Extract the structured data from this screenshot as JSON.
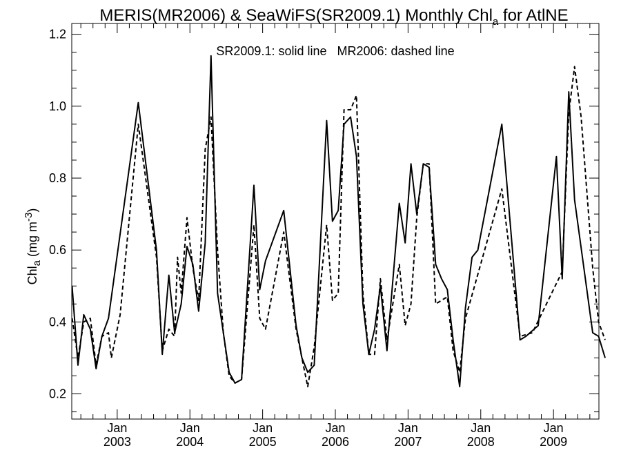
{
  "chart_data": {
    "type": "line",
    "title": "MERIS(MR2006) & SeaWiFS(SR2009.1) Monthly Chl",
    "title_subscript": "a",
    "title_suffix": " for AtlNE",
    "ylabel_main": "Chl",
    "ylabel_subscript": "a",
    "ylabel_units": " (mg m",
    "ylabel_exponent": "-3",
    "ylabel_close": ")",
    "annotation": "SR2009.1: solid line   MR2006: dashed line",
    "ylim": [
      0.13,
      1.23
    ],
    "xlim": [
      2002.375,
      2009.625
    ],
    "yticks": [
      0.2,
      0.4,
      0.6,
      0.8,
      1.0,
      1.2
    ],
    "ytick_labels": [
      "0.2",
      "0.4",
      "0.6",
      "0.8",
      "1.0",
      "1.2"
    ],
    "xticks": [
      2003.0,
      2004.0,
      2005.0,
      2006.0,
      2007.0,
      2008.0,
      2009.0
    ],
    "xtick_month_labels": [
      "Jan",
      "Jan",
      "Jan",
      "Jan",
      "Jan",
      "Jan",
      "Jan"
    ],
    "xtick_year_labels": [
      "2003",
      "2004",
      "2005",
      "2006",
      "2007",
      "2008",
      "2009"
    ],
    "line_color": "#000000",
    "grid": false,
    "series": [
      {
        "line_style": "solid",
        "points": [
          [
            2002.38,
            0.5
          ],
          [
            2002.46,
            0.28
          ],
          [
            2002.54,
            0.42
          ],
          [
            2002.63,
            0.38
          ],
          [
            2002.71,
            0.27
          ],
          [
            2002.79,
            0.36
          ],
          [
            2002.88,
            0.41
          ],
          [
            2003.29,
            1.01
          ],
          [
            2003.54,
            0.6
          ],
          [
            2003.62,
            0.31
          ],
          [
            2003.71,
            0.53
          ],
          [
            2003.79,
            0.37
          ],
          [
            2003.88,
            0.45
          ],
          [
            2003.96,
            0.61
          ],
          [
            2004.04,
            0.56
          ],
          [
            2004.12,
            0.43
          ],
          [
            2004.21,
            0.62
          ],
          [
            2004.29,
            1.14
          ],
          [
            2004.38,
            0.48
          ],
          [
            2004.46,
            0.37
          ],
          [
            2004.54,
            0.26
          ],
          [
            2004.62,
            0.23
          ],
          [
            2004.71,
            0.24
          ],
          [
            2004.88,
            0.78
          ],
          [
            2004.96,
            0.49
          ],
          [
            2005.04,
            0.57
          ],
          [
            2005.29,
            0.71
          ],
          [
            2005.46,
            0.39
          ],
          [
            2005.54,
            0.3
          ],
          [
            2005.62,
            0.26
          ],
          [
            2005.71,
            0.28
          ],
          [
            2005.88,
            0.96
          ],
          [
            2005.96,
            0.68
          ],
          [
            2006.04,
            0.71
          ],
          [
            2006.12,
            0.95
          ],
          [
            2006.21,
            0.97
          ],
          [
            2006.29,
            0.86
          ],
          [
            2006.38,
            0.45
          ],
          [
            2006.46,
            0.31
          ],
          [
            2006.54,
            0.38
          ],
          [
            2006.62,
            0.5
          ],
          [
            2006.71,
            0.32
          ],
          [
            2006.88,
            0.73
          ],
          [
            2006.96,
            0.62
          ],
          [
            2007.04,
            0.84
          ],
          [
            2007.12,
            0.7
          ],
          [
            2007.21,
            0.84
          ],
          [
            2007.29,
            0.83
          ],
          [
            2007.38,
            0.56
          ],
          [
            2007.46,
            0.52
          ],
          [
            2007.54,
            0.49
          ],
          [
            2007.62,
            0.35
          ],
          [
            2007.71,
            0.22
          ],
          [
            2007.79,
            0.44
          ],
          [
            2007.88,
            0.58
          ],
          [
            2007.96,
            0.6
          ],
          [
            2008.29,
            0.95
          ],
          [
            2008.54,
            0.35
          ],
          [
            2008.62,
            0.36
          ],
          [
            2008.79,
            0.39
          ],
          [
            2009.04,
            0.86
          ],
          [
            2009.12,
            0.52
          ],
          [
            2009.21,
            1.04
          ],
          [
            2009.29,
            0.74
          ],
          [
            2009.54,
            0.37
          ],
          [
            2009.62,
            0.36
          ],
          [
            2009.71,
            0.3
          ]
        ]
      },
      {
        "line_style": "dashed",
        "points": [
          [
            2002.38,
            0.41
          ],
          [
            2002.46,
            0.3
          ],
          [
            2002.54,
            0.4
          ],
          [
            2002.63,
            0.41
          ],
          [
            2002.71,
            0.28
          ],
          [
            2002.79,
            0.36
          ],
          [
            2002.88,
            0.37
          ],
          [
            2002.92,
            0.3
          ],
          [
            2003.04,
            0.42
          ],
          [
            2003.29,
            0.95
          ],
          [
            2003.54,
            0.58
          ],
          [
            2003.62,
            0.32
          ],
          [
            2003.71,
            0.38
          ],
          [
            2003.79,
            0.36
          ],
          [
            2003.83,
            0.58
          ],
          [
            2003.88,
            0.48
          ],
          [
            2003.96,
            0.69
          ],
          [
            2004.04,
            0.55
          ],
          [
            2004.12,
            0.46
          ],
          [
            2004.21,
            0.88
          ],
          [
            2004.29,
            0.97
          ],
          [
            2004.38,
            0.6
          ],
          [
            2004.46,
            0.37
          ],
          [
            2004.54,
            0.25
          ],
          [
            2004.62,
            0.23
          ],
          [
            2004.71,
            0.24
          ],
          [
            2004.88,
            0.67
          ],
          [
            2004.96,
            0.41
          ],
          [
            2005.04,
            0.38
          ],
          [
            2005.29,
            0.65
          ],
          [
            2005.46,
            0.38
          ],
          [
            2005.54,
            0.3
          ],
          [
            2005.62,
            0.22
          ],
          [
            2005.71,
            0.33
          ],
          [
            2005.88,
            0.67
          ],
          [
            2005.96,
            0.46
          ],
          [
            2006.04,
            0.48
          ],
          [
            2006.12,
            0.99
          ],
          [
            2006.21,
            0.99
          ],
          [
            2006.29,
            1.03
          ],
          [
            2006.38,
            0.48
          ],
          [
            2006.46,
            0.31
          ],
          [
            2006.54,
            0.31
          ],
          [
            2006.62,
            0.52
          ],
          [
            2006.71,
            0.35
          ],
          [
            2006.88,
            0.56
          ],
          [
            2006.96,
            0.39
          ],
          [
            2007.04,
            0.45
          ],
          [
            2007.12,
            0.69
          ],
          [
            2007.21,
            0.84
          ],
          [
            2007.29,
            0.84
          ],
          [
            2007.38,
            0.45
          ],
          [
            2007.54,
            0.47
          ],
          [
            2007.62,
            0.32
          ],
          [
            2007.71,
            0.26
          ],
          [
            2007.79,
            0.41
          ],
          [
            2008.29,
            0.77
          ],
          [
            2008.54,
            0.36
          ],
          [
            2008.71,
            0.37
          ],
          [
            2009.12,
            0.54
          ],
          [
            2009.21,
            0.98
          ],
          [
            2009.29,
            1.11
          ],
          [
            2009.38,
            0.97
          ],
          [
            2009.54,
            0.55
          ],
          [
            2009.62,
            0.4
          ],
          [
            2009.71,
            0.35
          ]
        ]
      }
    ]
  }
}
